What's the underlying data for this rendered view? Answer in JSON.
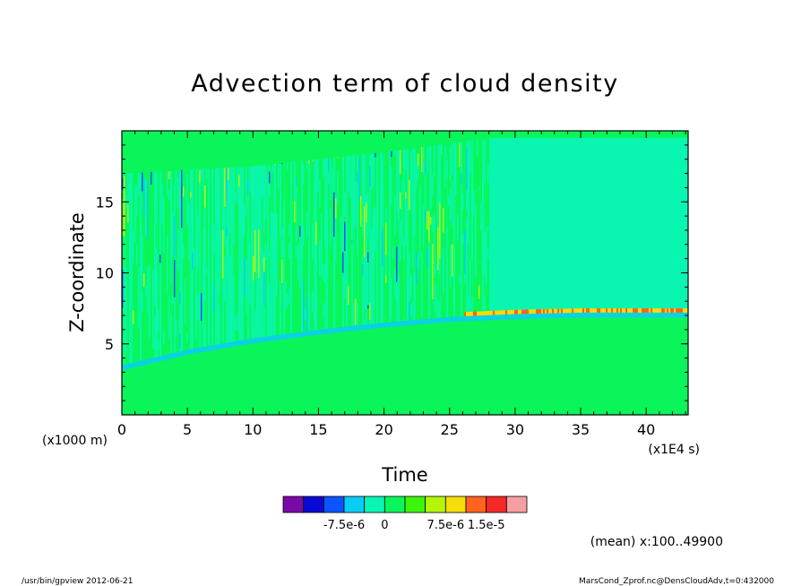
{
  "chart_data": {
    "type": "heatmap",
    "title": "Advection term of cloud density",
    "xlabel": "Time",
    "ylabel": "Z-coordinate",
    "x_unit": "(x1E4 s)",
    "y_unit": "(x1000 m)",
    "xlim": [
      0,
      43.2
    ],
    "ylim": [
      0,
      20
    ],
    "x_ticks": [
      0,
      5,
      10,
      15,
      20,
      25,
      30,
      35,
      40
    ],
    "y_ticks": [
      5,
      10,
      15
    ],
    "x_tick_labels": [
      "0",
      "5",
      "10",
      "15",
      "20",
      "25",
      "30",
      "35",
      "40"
    ],
    "y_tick_labels": [
      "5",
      "10",
      "15"
    ],
    "colorbar": {
      "colors": [
        "#7a0aa8",
        "#0a0ad2",
        "#0a55ff",
        "#0acdf5",
        "#0af5b4",
        "#0af55a",
        "#3cf50a",
        "#b4f50a",
        "#f5dc0a",
        "#ff641e",
        "#f52828",
        "#f5a0a0"
      ],
      "labels": [
        "-7.5e-6",
        "0",
        "7.5e-6",
        "1.5e-5"
      ]
    },
    "features": {
      "background_value": 0,
      "cloud_base_z": [
        [
          0,
          3.5
        ],
        [
          5,
          4.6
        ],
        [
          10,
          5.4
        ],
        [
          15,
          6.0
        ],
        [
          20,
          6.5
        ],
        [
          25,
          6.9
        ],
        [
          30,
          7.1
        ],
        [
          35,
          7.2
        ],
        [
          43.2,
          7.2
        ]
      ],
      "cloud_top_z": [
        [
          0,
          17.0
        ],
        [
          10,
          17.5
        ],
        [
          20,
          18.5
        ],
        [
          28,
          19.5
        ],
        [
          43.2,
          19.5
        ]
      ],
      "positive_band_x_start": 26,
      "turbulent_region_x_end": 28
    },
    "annotation": "(mean) x:100..49900"
  },
  "footer": {
    "left": "/usr/bin/gpview  2012-06-21",
    "right": "MarsCond_Zprof.nc@DensCloudAdv,t=0:432000"
  }
}
